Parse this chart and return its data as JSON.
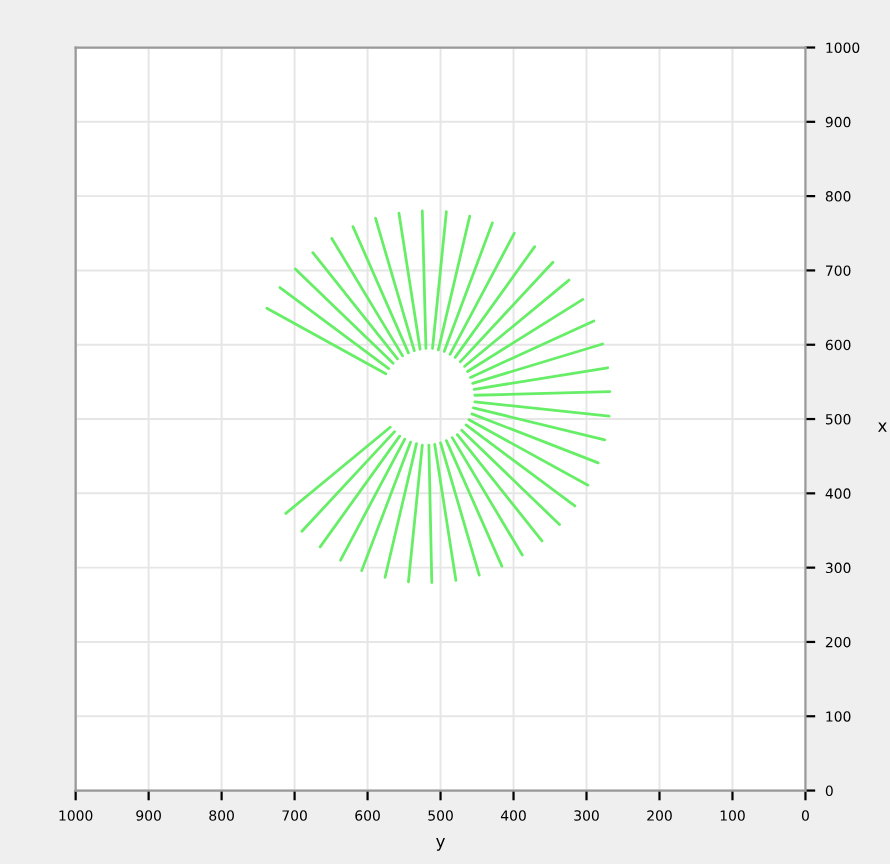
{
  "chart_data": {
    "type": "line",
    "xlabel": "y",
    "ylabel": "x",
    "xlim": [
      1000,
      0
    ],
    "ylim": [
      0,
      1000
    ],
    "xticks": [
      1000,
      900,
      800,
      700,
      600,
      500,
      400,
      300,
      200,
      100,
      0
    ],
    "yticks": [
      0,
      100,
      200,
      300,
      400,
      500,
      600,
      700,
      800,
      900,
      1000
    ],
    "grid": true,
    "marker": "none",
    "line_style": "solid",
    "series": [
      {
        "color": "#66ee66",
        "x": [
          569,
          712
        ],
        "values": [
          489,
          373
        ]
      },
      {
        "color": "#66ee66",
        "x": [
          563,
          690
        ],
        "values": [
          483,
          349
        ]
      },
      {
        "color": "#66ee66",
        "x": [
          556,
          665
        ],
        "values": [
          477,
          328
        ]
      },
      {
        "color": "#66ee66",
        "x": [
          549,
          637
        ],
        "values": [
          473,
          310
        ]
      },
      {
        "color": "#66ee66",
        "x": [
          541,
          608
        ],
        "values": [
          469,
          296
        ]
      },
      {
        "color": "#66ee66",
        "x": [
          533,
          576
        ],
        "values": [
          467,
          287
        ]
      },
      {
        "color": "#66ee66",
        "x": [
          525,
          544
        ],
        "values": [
          465,
          281
        ]
      },
      {
        "color": "#66ee66",
        "x": [
          516,
          512
        ],
        "values": [
          465,
          280
        ]
      },
      {
        "color": "#66ee66",
        "x": [
          508,
          479
        ],
        "values": [
          466,
          283
        ]
      },
      {
        "color": "#66ee66",
        "x": [
          500,
          447
        ],
        "values": [
          468,
          290
        ]
      },
      {
        "color": "#66ee66",
        "x": [
          492,
          416
        ],
        "values": [
          471,
          302
        ]
      },
      {
        "color": "#66ee66",
        "x": [
          484,
          388
        ],
        "values": [
          475,
          317
        ]
      },
      {
        "color": "#66ee66",
        "x": [
          477,
          361
        ],
        "values": [
          479,
          336
        ]
      },
      {
        "color": "#66ee66",
        "x": [
          471,
          337
        ],
        "values": [
          485,
          358
        ]
      },
      {
        "color": "#66ee66",
        "x": [
          465,
          316
        ],
        "values": [
          492,
          383
        ]
      },
      {
        "color": "#66ee66",
        "x": [
          461,
          298
        ],
        "values": [
          499,
          411
        ]
      },
      {
        "color": "#66ee66",
        "x": [
          457,
          284
        ],
        "values": [
          507,
          441
        ]
      },
      {
        "color": "#66ee66",
        "x": [
          455,
          275
        ],
        "values": [
          515,
          472
        ]
      },
      {
        "color": "#66ee66",
        "x": [
          453,
          269
        ],
        "values": [
          523,
          504
        ]
      },
      {
        "color": "#66ee66",
        "x": [
          453,
          268
        ],
        "values": [
          532,
          537
        ]
      },
      {
        "color": "#66ee66",
        "x": [
          454,
          271
        ],
        "values": [
          540,
          569
        ]
      },
      {
        "color": "#66ee66",
        "x": [
          456,
          278
        ],
        "values": [
          548,
          601
        ]
      },
      {
        "color": "#66ee66",
        "x": [
          459,
          290
        ],
        "values": [
          556,
          632
        ]
      },
      {
        "color": "#66ee66",
        "x": [
          463,
          305
        ],
        "values": [
          564,
          661
        ]
      },
      {
        "color": "#66ee66",
        "x": [
          467,
          324
        ],
        "values": [
          571,
          687
        ]
      },
      {
        "color": "#66ee66",
        "x": [
          473,
          346
        ],
        "values": [
          577,
          711
        ]
      },
      {
        "color": "#66ee66",
        "x": [
          480,
          371
        ],
        "values": [
          583,
          732
        ]
      },
      {
        "color": "#66ee66",
        "x": [
          487,
          399
        ],
        "values": [
          587,
          750
        ]
      },
      {
        "color": "#66ee66",
        "x": [
          495,
          429
        ],
        "values": [
          591,
          764
        ]
      },
      {
        "color": "#66ee66",
        "x": [
          503,
          460
        ],
        "values": [
          593,
          773
        ]
      },
      {
        "color": "#66ee66",
        "x": [
          511,
          492
        ],
        "values": [
          595,
          779
        ]
      },
      {
        "color": "#66ee66",
        "x": [
          520,
          525
        ],
        "values": [
          595,
          780
        ]
      },
      {
        "color": "#66ee66",
        "x": [
          528,
          557
        ],
        "values": [
          594,
          777
        ]
      },
      {
        "color": "#66ee66",
        "x": [
          536,
          589
        ],
        "values": [
          592,
          770
        ]
      },
      {
        "color": "#66ee66",
        "x": [
          544,
          620
        ],
        "values": [
          589,
          759
        ]
      },
      {
        "color": "#66ee66",
        "x": [
          552,
          649
        ],
        "values": [
          585,
          743
        ]
      },
      {
        "color": "#66ee66",
        "x": [
          559,
          675
        ],
        "values": [
          581,
          724
        ]
      },
      {
        "color": "#66ee66",
        "x": [
          565,
          699
        ],
        "values": [
          575,
          702
        ]
      },
      {
        "color": "#66ee66",
        "x": [
          571,
          720
        ],
        "values": [
          568,
          677
        ]
      },
      {
        "color": "#66ee66",
        "x": [
          575,
          738
        ],
        "values": [
          561,
          649
        ]
      }
    ]
  }
}
